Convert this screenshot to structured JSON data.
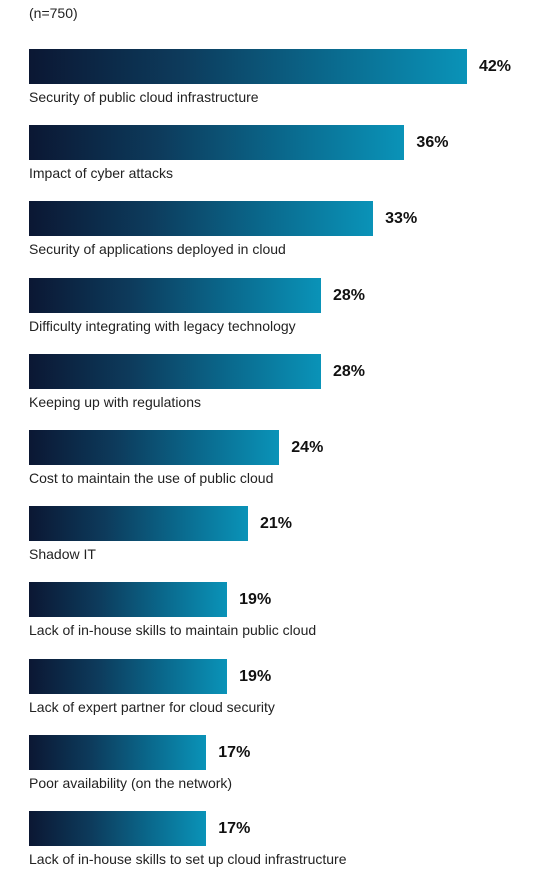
{
  "chart_data": {
    "type": "bar",
    "orientation": "horizontal",
    "subtitle": "(n=750)",
    "categories": [
      "Security of public cloud infrastructure",
      "Impact of cyber attacks",
      "Security of applications deployed in cloud",
      "Difficulty integrating with legacy technology",
      "Keeping up with regulations",
      "Cost to maintain the use of public cloud",
      "Shadow IT",
      "Lack of in-house skills to maintain public cloud",
      "Lack of expert partner for cloud security",
      "Poor availability (on the network)",
      "Lack of in-house skills to set up cloud infrastructure"
    ],
    "values": [
      42,
      36,
      33,
      28,
      28,
      24,
      21,
      19,
      19,
      17,
      17
    ],
    "value_labels": [
      "42%",
      "36%",
      "33%",
      "28%",
      "28%",
      "24%",
      "21%",
      "19%",
      "19%",
      "17%",
      "17%"
    ],
    "xlim": [
      0,
      42
    ],
    "grid": false,
    "bar_color_start": "#0b1733",
    "bar_color_end": "#0a93b8"
  }
}
